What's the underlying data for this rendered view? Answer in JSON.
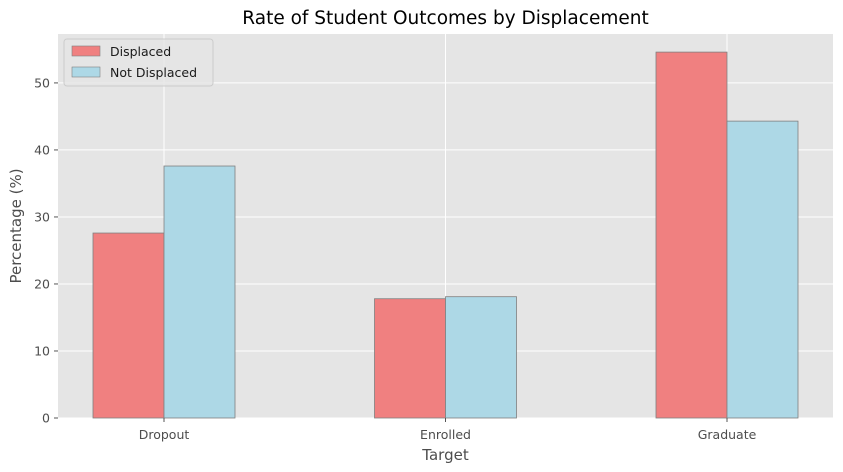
{
  "chart_data": {
    "type": "bar",
    "title": "Rate of Student Outcomes by Displacement",
    "xlabel": "Target",
    "ylabel": "Percentage (%)",
    "categories": [
      "Dropout",
      "Enrolled",
      "Graduate"
    ],
    "series": [
      {
        "name": "Displaced",
        "values": [
          27.6,
          17.8,
          54.6
        ],
        "color": "#f08080"
      },
      {
        "name": "Not Displaced",
        "values": [
          37.6,
          18.1,
          44.3
        ],
        "color": "#add8e6"
      }
    ],
    "ylim": [
      0,
      57.3
    ],
    "yticks": [
      0,
      10,
      20,
      30,
      40,
      50
    ],
    "grid": true,
    "legend_position": "top-left",
    "background_color": "#e5e5e5",
    "bar_edge_color": "#808080"
  }
}
